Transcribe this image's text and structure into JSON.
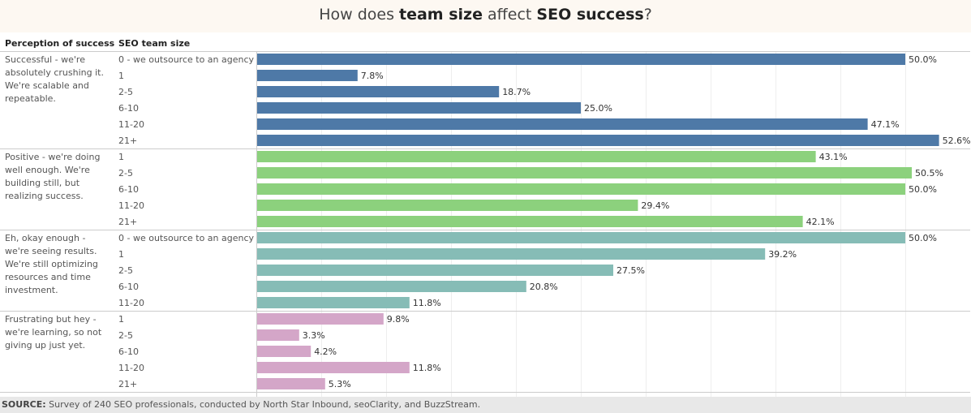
{
  "title": {
    "pre": "How does ",
    "b1": "team size",
    "mid": " affect ",
    "b2": "SEO success",
    "post": "?"
  },
  "headers": {
    "perception": "Perception of success",
    "team_size": "SEO team size"
  },
  "source": {
    "label": "SOURCE:",
    "text": "Survey of 240 SEO professionals, conducted by North Star Inbound, seoClarity, and BuzzStream."
  },
  "colors": {
    "successful": "#4e79a7",
    "positive": "#8cd17d",
    "okay": "#86bcb6",
    "frustrating": "#d4a6c8"
  },
  "chart_data": {
    "type": "bar",
    "orientation": "horizontal",
    "xlim": [
      0,
      55
    ],
    "value_suffix": "%",
    "groups": [
      {
        "label": "Successful - we're absolutely crushing it. We're scalable and repeatable.",
        "color": "#4e79a7",
        "categories": [
          "0 - we outsource to an agency",
          "1",
          "2-5",
          "6-10",
          "11-20",
          "21+"
        ],
        "values": [
          50.0,
          7.8,
          18.7,
          25.0,
          47.1,
          52.6
        ]
      },
      {
        "label": "Positive - we're doing well enough. We're building still, but realizing success.",
        "color": "#8cd17d",
        "categories": [
          "1",
          "2-5",
          "6-10",
          "11-20",
          "21+"
        ],
        "values": [
          43.1,
          50.5,
          50.0,
          29.4,
          42.1
        ]
      },
      {
        "label": "Eh, okay enough - we're seeing results. We're still optimizing resources and time investment.",
        "color": "#86bcb6",
        "categories": [
          "0 - we outsource to an agency",
          "1",
          "2-5",
          "6-10",
          "11-20"
        ],
        "values": [
          50.0,
          39.2,
          27.5,
          20.8,
          11.8
        ]
      },
      {
        "label": "Frustrating but hey - we're learning, so not giving up just yet.",
        "color": "#d4a6c8",
        "categories": [
          "1",
          "2-5",
          "6-10",
          "11-20",
          "21+"
        ],
        "values": [
          9.8,
          3.3,
          4.2,
          11.8,
          5.3
        ]
      }
    ]
  }
}
